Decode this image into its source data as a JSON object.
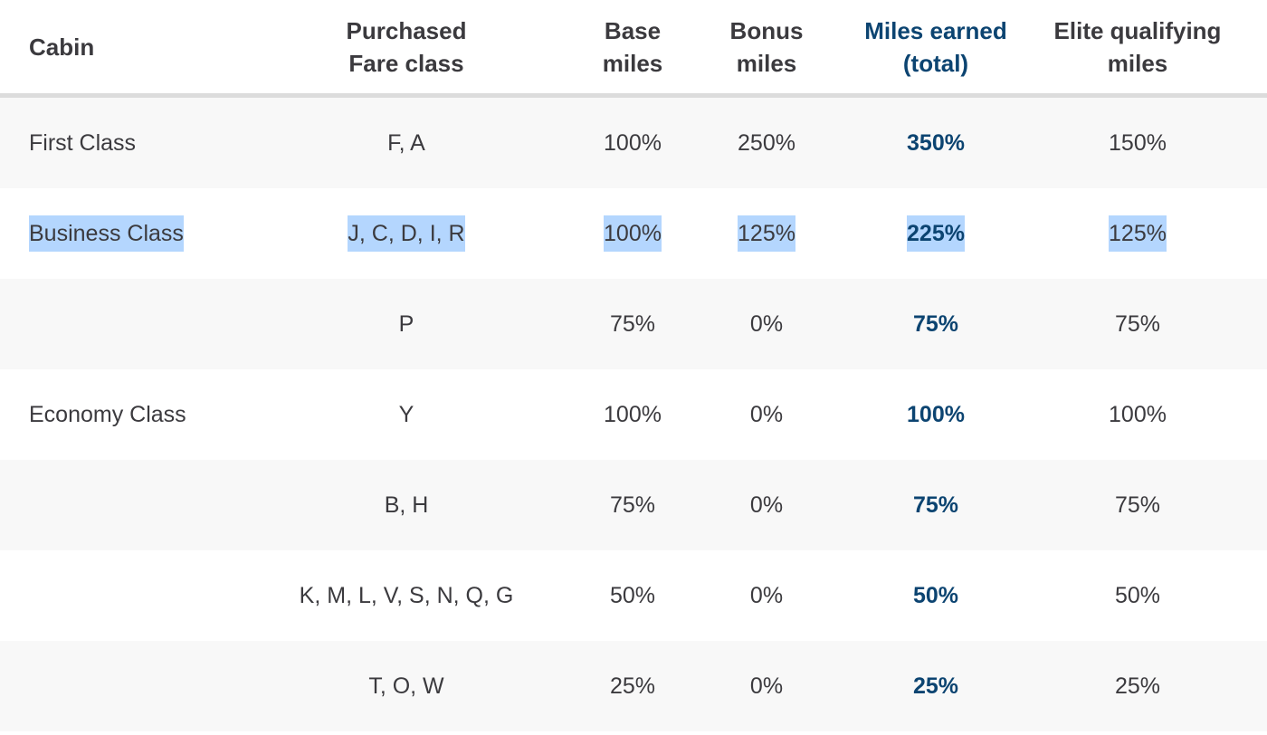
{
  "colors": {
    "accent": "#0c4471",
    "text": "#3b3a3e",
    "row_alt": "#f8f8f8",
    "selection": "#b4d6fe",
    "header_border": "#dcdcdc"
  },
  "table": {
    "headers": {
      "cabin": "Cabin",
      "fare_class_line1": "Purchased",
      "fare_class_line2": "Fare class",
      "base_line1": "Base",
      "base_line2": "miles",
      "bonus_line1": "Bonus",
      "bonus_line2": "miles",
      "total_line1": "Miles earned",
      "total_line2": "(total)",
      "elite_line1": "Elite qualifying",
      "elite_line2": "miles"
    },
    "rows": [
      {
        "cabin": "First Class",
        "fare_class": "F, A",
        "base": "100%",
        "bonus": "250%",
        "total": "350%",
        "elite": "150%",
        "selected": false
      },
      {
        "cabin": "Business Class",
        "fare_class": "J, C, D, I, R",
        "base": "100%",
        "bonus": "125%",
        "total": "225%",
        "elite": "125%",
        "selected": true
      },
      {
        "cabin": "",
        "fare_class": "P",
        "base": "75%",
        "bonus": "0%",
        "total": "75%",
        "elite": "75%",
        "selected": false
      },
      {
        "cabin": "Economy Class",
        "fare_class": "Y",
        "base": "100%",
        "bonus": "0%",
        "total": "100%",
        "elite": "100%",
        "selected": false
      },
      {
        "cabin": "",
        "fare_class": "B, H",
        "base": "75%",
        "bonus": "0%",
        "total": "75%",
        "elite": "75%",
        "selected": false
      },
      {
        "cabin": "",
        "fare_class": "K, M, L, V, S, N, Q, G",
        "base": "50%",
        "bonus": "0%",
        "total": "50%",
        "elite": "50%",
        "selected": false
      },
      {
        "cabin": "",
        "fare_class": "T, O, W",
        "base": "25%",
        "bonus": "0%",
        "total": "25%",
        "elite": "25%",
        "selected": false
      }
    ]
  }
}
